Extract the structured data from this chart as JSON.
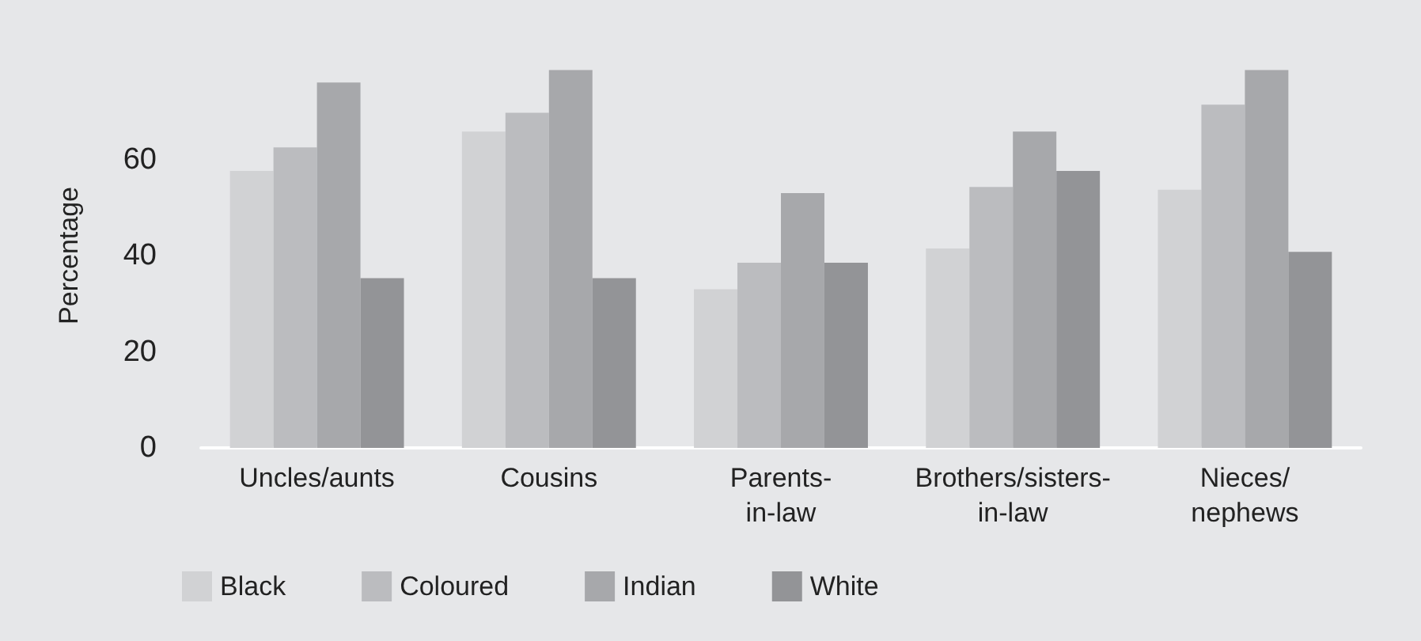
{
  "chart_data": {
    "type": "bar",
    "ylabel": "Percentage",
    "categories": [
      "Uncles/aunts",
      "Cousins",
      "Parents-\nin-law",
      "Brothers/sisters-\nin-law",
      "Nieces/\nnephews"
    ],
    "series": [
      {
        "name": "Black",
        "color": "#d1d2d4",
        "values": [
          57.6,
          65.8,
          33,
          41.5,
          53.7
        ]
      },
      {
        "name": "Coloured",
        "color": "#bbbcbf",
        "values": [
          62.5,
          69.7,
          38.5,
          54.3,
          71.4
        ]
      },
      {
        "name": "Indian",
        "color": "#a7a8ab",
        "values": [
          76,
          78.6,
          53,
          65.8,
          78.6
        ]
      },
      {
        "name": "White",
        "color": "#939497",
        "values": [
          35.3,
          35.3,
          38.5,
          57.6,
          40.8
        ]
      }
    ],
    "ylim": [
      0,
      80
    ],
    "yticks": [
      0,
      20,
      40,
      60
    ],
    "grid": false,
    "legend": "bottom left"
  }
}
